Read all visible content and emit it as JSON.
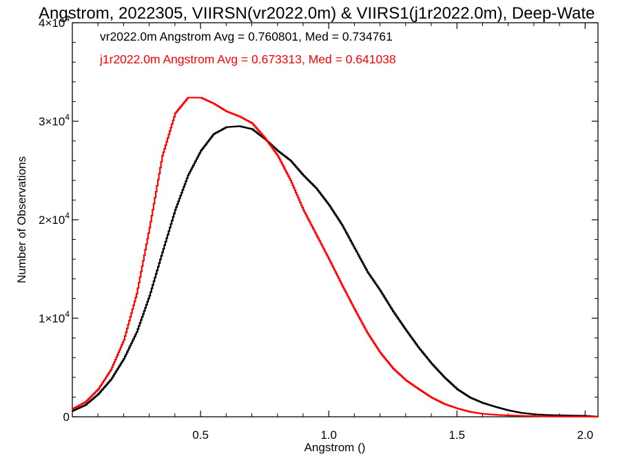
{
  "chart_data": {
    "type": "line",
    "title": "Angstrom, 2022305, VIIRSN(vr2022.0m) & VIIRS1(j1r2022.0m), Deep-Wate",
    "xlabel": "Angstrom ()",
    "ylabel": "Number of Observations",
    "xlim": [
      0.0,
      2.05
    ],
    "ylim": [
      0,
      40000
    ],
    "xticks": [
      {
        "value": 0.5,
        "label": "0.5"
      },
      {
        "value": 1.0,
        "label": "1.0"
      },
      {
        "value": 1.5,
        "label": "1.5"
      },
      {
        "value": 2.0,
        "label": "2.0"
      }
    ],
    "yticks": [
      {
        "value": 0,
        "mant": "0",
        "exp": ""
      },
      {
        "value": 10000,
        "mant": "1×10",
        "exp": "4"
      },
      {
        "value": 20000,
        "mant": "2×10",
        "exp": "4"
      },
      {
        "value": 30000,
        "mant": "3×10",
        "exp": "4"
      },
      {
        "value": 40000,
        "mant": "4×10",
        "exp": "4"
      }
    ],
    "grid": false,
    "legend_position": "top-left",
    "annotations": [
      {
        "text": "vr2022.0m Angstrom Avg = 0.760801, Med = 0.734761",
        "color": "#000000"
      },
      {
        "text": "j1r2022.0m Angstrom Avg = 0.673313, Med = 0.641038",
        "color": "#ff0000"
      }
    ],
    "series": [
      {
        "color": "#000000",
        "x": [
          0.0,
          0.05,
          0.1,
          0.15,
          0.2,
          0.25,
          0.3,
          0.35,
          0.4,
          0.45,
          0.5,
          0.55,
          0.6,
          0.65,
          0.7,
          0.75,
          0.8,
          0.85,
          0.9,
          0.95,
          1.0,
          1.05,
          1.1,
          1.15,
          1.2,
          1.25,
          1.3,
          1.35,
          1.4,
          1.45,
          1.5,
          1.55,
          1.6,
          1.65,
          1.7,
          1.75,
          1.8,
          1.85,
          1.9,
          2.0,
          2.05
        ],
        "y": [
          600,
          1200,
          2300,
          3800,
          5900,
          8600,
          12300,
          16700,
          21000,
          24500,
          27000,
          28700,
          29400,
          29500,
          29200,
          28200,
          27000,
          26000,
          24500,
          23200,
          21500,
          19500,
          17100,
          14700,
          12800,
          10700,
          8800,
          7000,
          5400,
          4000,
          2800,
          1950,
          1400,
          1000,
          650,
          400,
          250,
          180,
          150,
          100,
          0
        ]
      },
      {
        "color": "#ff0000",
        "x": [
          0.0,
          0.05,
          0.1,
          0.15,
          0.2,
          0.25,
          0.3,
          0.35,
          0.4,
          0.45,
          0.5,
          0.55,
          0.6,
          0.65,
          0.7,
          0.75,
          0.8,
          0.85,
          0.9,
          0.95,
          1.0,
          1.05,
          1.1,
          1.15,
          1.2,
          1.25,
          1.3,
          1.35,
          1.4,
          1.45,
          1.5,
          1.55,
          1.6,
          1.65,
          1.7,
          1.75,
          1.8,
          1.85,
          1.9,
          2.0,
          2.05
        ],
        "y": [
          800,
          1500,
          2800,
          4800,
          7800,
          12500,
          19200,
          26500,
          30800,
          32400,
          32400,
          31800,
          31000,
          30500,
          29800,
          28300,
          26500,
          24000,
          21000,
          18500,
          16000,
          13400,
          10900,
          8500,
          6500,
          4900,
          3700,
          2800,
          1950,
          1300,
          850,
          500,
          300,
          200,
          140,
          100,
          60,
          40,
          30,
          20,
          0
        ]
      }
    ]
  }
}
